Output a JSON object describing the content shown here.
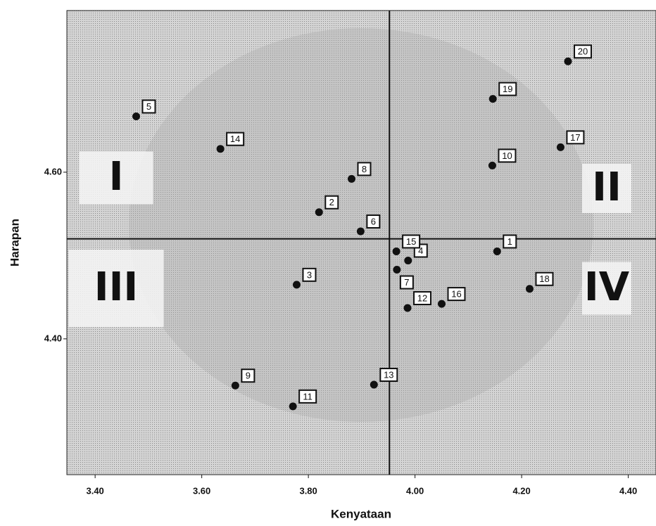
{
  "chart_data": {
    "type": "scatter",
    "x_label": "Kenyataan",
    "y_label": "Harapan",
    "xlim": [
      3.347,
      4.452
    ],
    "ylim": [
      4.237,
      4.794
    ],
    "xticks": [
      {
        "value": 3.4,
        "label": "3.40"
      },
      {
        "value": 3.6,
        "label": "3.60"
      },
      {
        "value": 3.8,
        "label": "3.80"
      },
      {
        "value": 4.0,
        "label": "4.00"
      },
      {
        "value": 4.2,
        "label": "4.20"
      },
      {
        "value": 4.4,
        "label": "4.40"
      }
    ],
    "yticks": [
      {
        "value": 4.4,
        "label": "4.40"
      },
      {
        "value": 4.6,
        "label": "4.60"
      }
    ],
    "reference_lines": {
      "x": 3.952,
      "y": 4.52
    },
    "quadrant_labels": [
      "I",
      "II",
      "III",
      "IV"
    ],
    "series": [
      {
        "color": "#111111",
        "labels": [
          "1",
          "2",
          "3",
          "4",
          "5",
          "6",
          "7",
          "8",
          "9",
          "10",
          "11",
          "12",
          "13",
          "14",
          "15",
          "16",
          "17",
          "18",
          "19",
          "20"
        ],
        "x": [
          4.154,
          3.82,
          3.778,
          3.987,
          3.477,
          3.898,
          3.966,
          3.881,
          3.663,
          4.145,
          3.771,
          3.986,
          3.923,
          3.635,
          3.965,
          4.05,
          4.273,
          4.215,
          4.146,
          4.287
        ],
        "y": [
          4.505,
          4.552,
          4.465,
          4.494,
          4.667,
          4.529,
          4.483,
          4.592,
          4.344,
          4.608,
          4.319,
          4.437,
          4.345,
          4.628,
          4.505,
          4.442,
          4.63,
          4.46,
          4.688,
          4.733
        ]
      }
    ]
  }
}
